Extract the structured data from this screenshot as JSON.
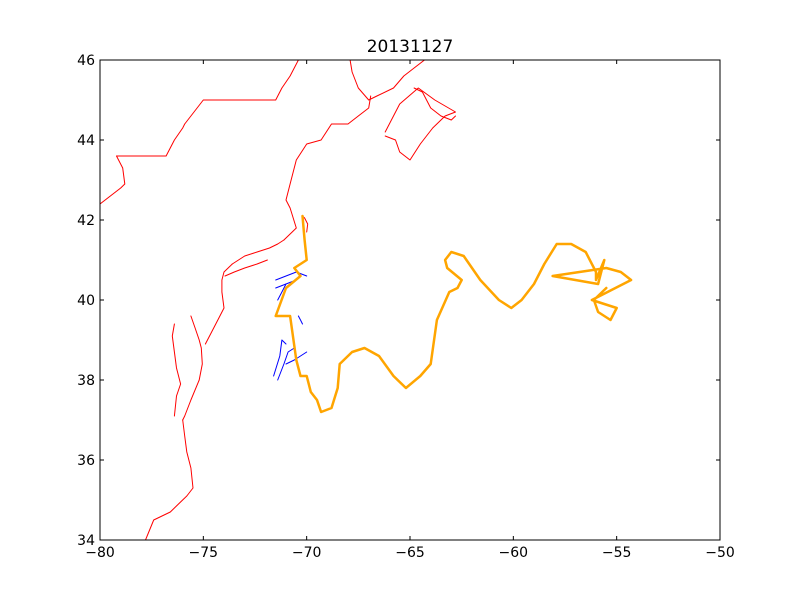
{
  "chart_data": {
    "type": "line",
    "title": "20131127",
    "xlabel": "",
    "ylabel": "",
    "xlim": [
      -80,
      -50
    ],
    "ylim": [
      34,
      46
    ],
    "xticks": [
      -80,
      -75,
      -70,
      -65,
      -60,
      -55,
      -50
    ],
    "yticks": [
      34,
      36,
      38,
      40,
      42,
      44,
      46
    ],
    "xtick_labels": [
      "−80",
      "−75",
      "−70",
      "−65",
      "−60",
      "−55",
      "−50"
    ],
    "ytick_labels": [
      "34",
      "36",
      "38",
      "40",
      "42",
      "44",
      "46"
    ],
    "grid": false,
    "series": [
      {
        "color": "#ff0000",
        "width": 1,
        "paths": [
          [
            [
              -80.0,
              42.4
            ],
            [
              -79.0,
              42.8
            ],
            [
              -78.8,
              42.9
            ],
            [
              -78.9,
              43.3
            ],
            [
              -79.2,
              43.6
            ],
            [
              -77.3,
              43.6
            ],
            [
              -76.8,
              43.6
            ],
            [
              -76.4,
              44.0
            ],
            [
              -76.0,
              44.3
            ],
            [
              -75.9,
              44.4
            ],
            [
              -75.0,
              45.0
            ],
            [
              -73.5,
              45.0
            ],
            [
              -71.5,
              45.0
            ],
            [
              -71.2,
              45.3
            ],
            [
              -70.8,
              45.6
            ],
            [
              -70.4,
              46.0
            ]
          ],
          [
            [
              -67.9,
              46.0
            ],
            [
              -67.8,
              45.7
            ],
            [
              -67.5,
              45.3
            ],
            [
              -67.0,
              45.0
            ],
            [
              -66.6,
              45.1
            ],
            [
              -65.8,
              45.3
            ],
            [
              -65.3,
              45.6
            ],
            [
              -64.8,
              45.8
            ],
            [
              -64.3,
              46.0
            ]
          ],
          [
            [
              -64.8,
              45.3
            ],
            [
              -64.4,
              45.2
            ],
            [
              -64.0,
              44.8
            ],
            [
              -63.5,
              44.6
            ],
            [
              -63.0,
              44.5
            ],
            [
              -62.8,
              44.6
            ]
          ],
          [
            [
              -66.2,
              44.1
            ],
            [
              -65.7,
              44.0
            ],
            [
              -65.5,
              43.7
            ],
            [
              -65.0,
              43.5
            ],
            [
              -64.5,
              43.9
            ],
            [
              -63.9,
              44.3
            ],
            [
              -63.3,
              44.6
            ],
            [
              -62.8,
              44.7
            ],
            [
              -63.8,
              45.0
            ],
            [
              -64.6,
              45.3
            ],
            [
              -65.5,
              44.9
            ],
            [
              -66.2,
              44.2
            ]
          ],
          [
            [
              -71.1,
              41.5
            ],
            [
              -70.7,
              41.7
            ],
            [
              -70.5,
              41.8
            ],
            [
              -70.8,
              42.3
            ],
            [
              -71.0,
              42.5
            ],
            [
              -70.8,
              42.9
            ],
            [
              -70.5,
              43.5
            ],
            [
              -70.0,
              43.9
            ],
            [
              -69.3,
              44.0
            ],
            [
              -68.8,
              44.4
            ],
            [
              -68.0,
              44.4
            ],
            [
              -67.5,
              44.6
            ],
            [
              -67.0,
              44.8
            ],
            [
              -66.9,
              45.1
            ]
          ],
          [
            [
              -70.0,
              41.7
            ],
            [
              -69.95,
              41.9
            ],
            [
              -70.1,
              42.05
            ],
            [
              -70.2,
              42.1
            ]
          ],
          [
            [
              -73.6,
              40.9
            ],
            [
              -73.0,
              41.1
            ],
            [
              -72.4,
              41.2
            ],
            [
              -71.8,
              41.3
            ],
            [
              -71.4,
              41.4
            ],
            [
              -71.1,
              41.5
            ]
          ],
          [
            [
              -73.95,
              40.6
            ],
            [
              -73.5,
              40.7
            ],
            [
              -73.0,
              40.8
            ],
            [
              -72.4,
              40.9
            ],
            [
              -71.9,
              41.0
            ]
          ],
          [
            [
              -73.6,
              40.9
            ],
            [
              -74.0,
              40.7
            ],
            [
              -74.1,
              40.5
            ],
            [
              -74.1,
              40.2
            ],
            [
              -74.0,
              39.8
            ],
            [
              -74.2,
              39.6
            ],
            [
              -74.5,
              39.3
            ],
            [
              -74.9,
              38.9
            ]
          ],
          [
            [
              -75.6,
              39.6
            ],
            [
              -75.4,
              39.3
            ],
            [
              -75.2,
              39.0
            ],
            [
              -75.1,
              38.8
            ],
            [
              -75.05,
              38.4
            ],
            [
              -75.2,
              38.0
            ],
            [
              -75.6,
              37.5
            ],
            [
              -75.9,
              37.1
            ],
            [
              -76.0,
              37.0
            ]
          ],
          [
            [
              -76.4,
              39.4
            ],
            [
              -76.5,
              39.1
            ],
            [
              -76.4,
              38.7
            ],
            [
              -76.3,
              38.3
            ],
            [
              -76.1,
              37.9
            ],
            [
              -76.3,
              37.6
            ],
            [
              -76.4,
              37.1
            ]
          ],
          [
            [
              -76.0,
              37.0
            ],
            [
              -75.9,
              36.6
            ],
            [
              -75.8,
              36.2
            ],
            [
              -75.6,
              35.8
            ],
            [
              -75.5,
              35.3
            ],
            [
              -75.8,
              35.1
            ],
            [
              -76.2,
              34.9
            ],
            [
              -76.6,
              34.7
            ],
            [
              -77.0,
              34.6
            ],
            [
              -77.4,
              34.5
            ],
            [
              -77.8,
              34.0
            ]
          ]
        ]
      },
      {
        "color": "#0000ff",
        "width": 1,
        "paths": [
          [
            [
              -71.5,
              40.5
            ],
            [
              -71.0,
              40.6
            ],
            [
              -70.5,
              40.7
            ],
            [
              -70.0,
              40.6
            ]
          ],
          [
            [
              -71.5,
              40.3
            ],
            [
              -71.0,
              40.4
            ],
            [
              -70.5,
              40.5
            ]
          ],
          [
            [
              -71.4,
              40.0
            ],
            [
              -71.2,
              40.2
            ],
            [
              -71.0,
              40.4
            ]
          ],
          [
            [
              -70.4,
              39.6
            ],
            [
              -70.3,
              39.5
            ],
            [
              -70.2,
              39.4
            ]
          ],
          [
            [
              -71.6,
              38.1
            ],
            [
              -71.3,
              38.6
            ],
            [
              -71.2,
              39.0
            ],
            [
              -71.0,
              38.9
            ]
          ],
          [
            [
              -71.4,
              38.0
            ],
            [
              -71.1,
              38.4
            ],
            [
              -70.9,
              38.7
            ],
            [
              -70.6,
              38.8
            ]
          ],
          [
            [
              -71.0,
              38.4
            ],
            [
              -70.6,
              38.5
            ],
            [
              -70.3,
              38.6
            ],
            [
              -70.0,
              38.7
            ]
          ]
        ]
      },
      {
        "color": "#ffa500",
        "width": 2.5,
        "paths": [
          [
            [
              -70.2,
              42.1
            ],
            [
              -70.1,
              41.5
            ],
            [
              -70.0,
              41.0
            ],
            [
              -70.6,
              40.8
            ],
            [
              -70.3,
              40.6
            ],
            [
              -71.0,
              40.3
            ],
            [
              -71.5,
              39.6
            ],
            [
              -70.8,
              39.6
            ],
            [
              -70.5,
              38.5
            ],
            [
              -70.3,
              38.1
            ],
            [
              -70.0,
              38.1
            ],
            [
              -69.8,
              37.7
            ],
            [
              -69.5,
              37.5
            ],
            [
              -69.3,
              37.2
            ],
            [
              -68.8,
              37.3
            ],
            [
              -68.5,
              37.8
            ],
            [
              -68.4,
              38.4
            ],
            [
              -67.8,
              38.7
            ],
            [
              -67.2,
              38.8
            ],
            [
              -66.5,
              38.6
            ],
            [
              -65.8,
              38.1
            ],
            [
              -65.2,
              37.8
            ],
            [
              -64.5,
              38.1
            ],
            [
              -64.0,
              38.4
            ],
            [
              -63.7,
              39.5
            ],
            [
              -63.1,
              40.2
            ],
            [
              -62.7,
              40.3
            ],
            [
              -62.5,
              40.5
            ],
            [
              -63.2,
              40.8
            ],
            [
              -63.3,
              41.0
            ],
            [
              -63.0,
              41.2
            ],
            [
              -62.4,
              41.1
            ],
            [
              -61.6,
              40.5
            ],
            [
              -60.7,
              40.0
            ],
            [
              -60.1,
              39.8
            ],
            [
              -59.6,
              40.0
            ],
            [
              -59.0,
              40.4
            ],
            [
              -58.5,
              40.9
            ],
            [
              -57.9,
              41.4
            ],
            [
              -57.2,
              41.4
            ],
            [
              -56.5,
              41.2
            ],
            [
              -56.0,
              40.7
            ],
            [
              -56.0,
              40.5
            ],
            [
              -55.6,
              41.0
            ],
            [
              -55.9,
              40.4
            ],
            [
              -58.1,
              40.6
            ],
            [
              -55.5,
              40.8
            ],
            [
              -54.8,
              40.7
            ],
            [
              -54.3,
              40.5
            ],
            [
              -56.2,
              40.0
            ],
            [
              -55.0,
              39.8
            ],
            [
              -55.3,
              39.5
            ],
            [
              -55.9,
              39.7
            ],
            [
              -56.1,
              40.0
            ],
            [
              -55.5,
              40.3
            ]
          ]
        ]
      }
    ]
  }
}
